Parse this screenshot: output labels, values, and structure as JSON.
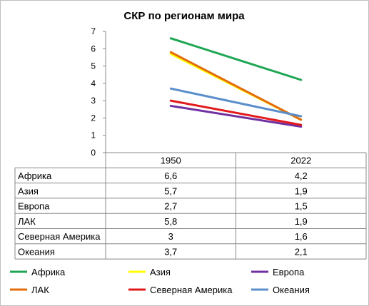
{
  "chart_data": {
    "type": "line",
    "title": "СКР по регионам мира",
    "categories": [
      "1950",
      "2022"
    ],
    "ylim": [
      0,
      7
    ],
    "yticks": [
      "0",
      "1",
      "2",
      "3",
      "4",
      "5",
      "6",
      "7"
    ],
    "grid": false,
    "legend": "bottom",
    "series": [
      {
        "name": "Африка",
        "color": "#1fa654",
        "values": [
          6.6,
          4.2
        ],
        "labels": [
          "6,6",
          "4,2"
        ]
      },
      {
        "name": "Азия",
        "color": "#ffff00",
        "values": [
          5.7,
          1.9
        ],
        "labels": [
          "5,7",
          "1,9"
        ]
      },
      {
        "name": "Европа",
        "color": "#7030a0",
        "values": [
          2.7,
          1.5
        ],
        "labels": [
          "2,7",
          "1,5"
        ]
      },
      {
        "name": "ЛАК",
        "color": "#e36c09",
        "values": [
          5.8,
          1.9
        ],
        "labels": [
          "5,8",
          "1,9"
        ]
      },
      {
        "name": "Северная Америка",
        "color": "#e31a1c",
        "values": [
          3,
          1.6
        ],
        "labels": [
          "3",
          "1,6"
        ]
      },
      {
        "name": "Океания",
        "color": "#5b8fcb",
        "values": [
          3.7,
          2.1
        ],
        "labels": [
          "3,7",
          "2,1"
        ]
      }
    ]
  }
}
